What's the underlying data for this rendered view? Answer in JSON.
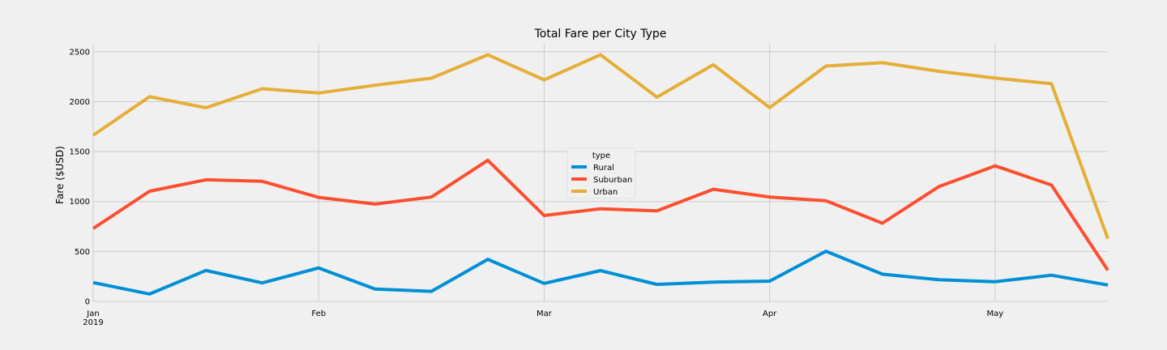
{
  "chart_data": {
    "type": "line",
    "title": "Total Fare per City Type",
    "xlabel": "",
    "ylabel": "Fare ($USD)",
    "x": [
      "2019-01-06",
      "2019-01-13",
      "2019-01-20",
      "2019-01-27",
      "2019-02-03",
      "2019-02-10",
      "2019-02-17",
      "2019-02-24",
      "2019-03-03",
      "2019-03-10",
      "2019-03-17",
      "2019-03-24",
      "2019-03-31",
      "2019-04-07",
      "2019-04-14",
      "2019-04-21",
      "2019-04-28",
      "2019-05-05",
      "2019-05-12"
    ],
    "xlim": [
      "2019-01-06",
      "2019-05-12"
    ],
    "ylim": [
      0,
      2580
    ],
    "y_ticks": [
      0,
      500,
      1000,
      1500,
      2000,
      2500
    ],
    "x_ticks": [
      {
        "date": "2019-01-06",
        "label": "Jan",
        "sublabel": "2019"
      },
      {
        "date": "2019-02-03",
        "label": "Feb",
        "sublabel": ""
      },
      {
        "date": "2019-03-03",
        "label": "Mar",
        "sublabel": ""
      },
      {
        "date": "2019-03-31",
        "label": "Apr",
        "sublabel": ""
      },
      {
        "date": "2019-04-28",
        "label": "May",
        "sublabel": ""
      }
    ],
    "grid": true,
    "legend": {
      "title": "type",
      "placement": "center"
    },
    "series": [
      {
        "name": "Rural",
        "color": "#008fd5",
        "values": [
          188,
          74,
          310,
          185,
          335,
          123,
          101,
          421,
          180,
          308,
          170,
          193,
          203,
          502,
          273,
          217,
          197,
          262,
          164
        ]
      },
      {
        "name": "Suburban",
        "color": "#fc4f30",
        "values": [
          730,
          1103,
          1218,
          1202,
          1042,
          974,
          1045,
          1413,
          860,
          927,
          907,
          1123,
          1045,
          1008,
          783,
          1149,
          1357,
          1165,
          312
        ]
      },
      {
        "name": "Urban",
        "color": "#e5ae38",
        "values": [
          1664,
          2050,
          1939,
          2130,
          2087,
          2165,
          2235,
          2470,
          2218,
          2470,
          2045,
          2370,
          1941,
          2357,
          2390,
          2304,
          2236,
          2180,
          628
        ]
      }
    ]
  }
}
